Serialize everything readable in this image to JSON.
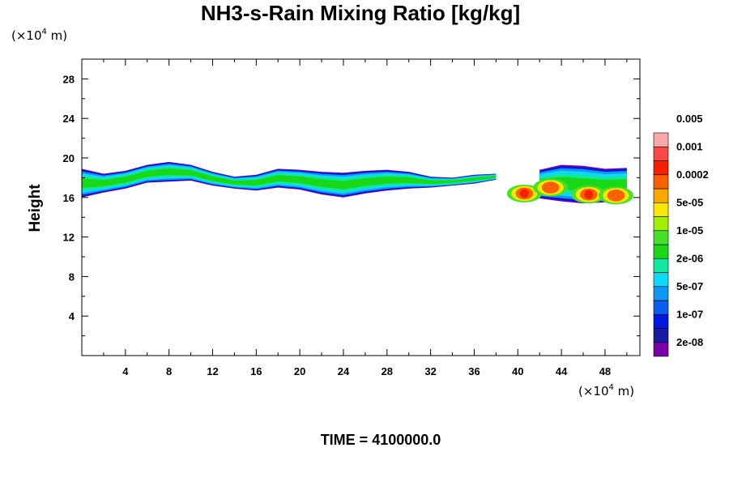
{
  "chart_data": {
    "type": "heatmap",
    "title": "NH3-s-Rain Mixing Ratio [kg/kg]",
    "ylabel": "Height",
    "x_unit_prefix": "(×10",
    "x_unit_exp": "4",
    "x_unit_suffix": " m)",
    "y_unit_prefix": "(×10",
    "y_unit_exp": "4",
    "y_unit_suffix": " m)",
    "xlim": [
      0,
      51.2
    ],
    "ylim": [
      0,
      30
    ],
    "x_ticks": [
      4,
      8,
      12,
      16,
      20,
      24,
      28,
      32,
      36,
      40,
      44,
      48
    ],
    "y_ticks": [
      4,
      8,
      12,
      16,
      20,
      24,
      28
    ],
    "colorbar": {
      "colors": [
        "#7a00a8",
        "#1a1aa0",
        "#0018e0",
        "#0c5cf0",
        "#1098f0",
        "#10d8f8",
        "#10e8a0",
        "#18d818",
        "#48e028",
        "#a0f000",
        "#f8e800",
        "#f8a800",
        "#f86000",
        "#f82000",
        "#f84848",
        "#f8a8a8"
      ],
      "labels": [
        "2e-08",
        "1e-07",
        "5e-07",
        "2e-06",
        "1e-05",
        "5e-05",
        "0.0002",
        "0.001",
        "0.005"
      ]
    },
    "regions": [
      {
        "x": 0,
        "y_bottom": 16.0,
        "y_top": 18.9
      },
      {
        "x": 2,
        "y_bottom": 16.5,
        "y_top": 18.4
      },
      {
        "x": 4,
        "y_bottom": 16.9,
        "y_top": 18.7
      },
      {
        "x": 6,
        "y_bottom": 17.5,
        "y_top": 19.3
      },
      {
        "x": 8,
        "y_bottom": 17.6,
        "y_top": 19.6
      },
      {
        "x": 10,
        "y_bottom": 17.7,
        "y_top": 19.3
      },
      {
        "x": 12,
        "y_bottom": 17.2,
        "y_top": 18.6
      },
      {
        "x": 14,
        "y_bottom": 16.9,
        "y_top": 18.1
      },
      {
        "x": 16,
        "y_bottom": 16.7,
        "y_top": 18.3
      },
      {
        "x": 18,
        "y_bottom": 17.0,
        "y_top": 18.9
      },
      {
        "x": 20,
        "y_bottom": 16.8,
        "y_top": 18.8
      },
      {
        "x": 22,
        "y_bottom": 16.3,
        "y_top": 18.6
      },
      {
        "x": 24,
        "y_bottom": 16.0,
        "y_top": 18.5
      },
      {
        "x": 26,
        "y_bottom": 16.4,
        "y_top": 18.7
      },
      {
        "x": 28,
        "y_bottom": 16.7,
        "y_top": 18.8
      },
      {
        "x": 30,
        "y_bottom": 16.9,
        "y_top": 18.6
      },
      {
        "x": 32,
        "y_bottom": 17.0,
        "y_top": 18.1
      },
      {
        "x": 34,
        "y_bottom": 17.2,
        "y_top": 18.0
      },
      {
        "x": 36,
        "y_bottom": 17.4,
        "y_top": 18.3
      },
      {
        "x": 38,
        "y_bottom": 17.8,
        "y_top": 18.4
      },
      {
        "x": 40,
        "y_bottom": 15.8,
        "y_top": 17.0
      },
      {
        "x": 42,
        "y_bottom": 15.9,
        "y_top": 18.8
      },
      {
        "x": 44,
        "y_bottom": 15.6,
        "y_top": 19.3
      },
      {
        "x": 46,
        "y_bottom": 15.4,
        "y_top": 19.2
      },
      {
        "x": 48,
        "y_bottom": 15.5,
        "y_top": 18.9
      },
      {
        "x": 50,
        "y_bottom": 15.6,
        "y_top": 19.0
      }
    ],
    "max_cores": [
      {
        "x": 40.6,
        "y": 16.4,
        "level": 13
      },
      {
        "x": 43.0,
        "y": 17.0,
        "level": 12
      },
      {
        "x": 46.5,
        "y": 16.3,
        "level": 13
      },
      {
        "x": 49.0,
        "y": 16.2,
        "level": 12
      }
    ]
  },
  "footer": {
    "time_label": "TIME = 4100000.0"
  }
}
